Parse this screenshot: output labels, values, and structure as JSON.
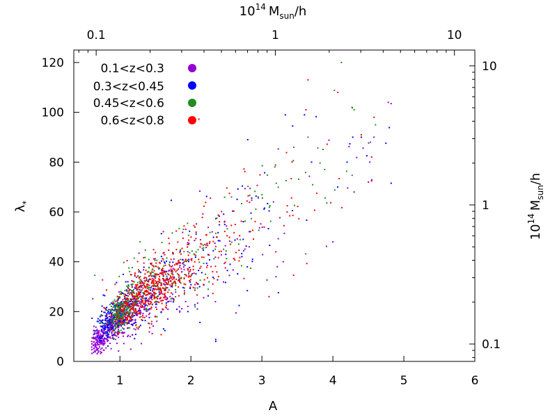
{
  "chart_data": {
    "type": "scatter",
    "title": "",
    "xlabel": "A",
    "ylabel": "λ",
    "ylabel_sub": "*",
    "xlim": [
      0.35,
      6
    ],
    "ylim": [
      0,
      125
    ],
    "x_ticks": [
      "1",
      "2",
      "3",
      "4",
      "5",
      "6"
    ],
    "y_ticks": [
      "0",
      "20",
      "40",
      "60",
      "80",
      "100",
      "120"
    ],
    "top_axis": {
      "label_base": "10",
      "label_exp": "14",
      "label_unit": "M",
      "label_unit_sub": "sun",
      "label_suffix": "/h",
      "ticks": [
        "0.1",
        "1",
        "10"
      ],
      "tick_values": [
        0.1,
        1,
        10
      ],
      "scale": "log",
      "range": [
        0.075,
        13
      ]
    },
    "right_axis": {
      "label_base": "10",
      "label_exp": "14",
      "label_unit": "M",
      "label_unit_sub": "sun",
      "label_suffix": "/h",
      "ticks": [
        "0.1",
        "1",
        "10"
      ],
      "tick_values": [
        0.1,
        1,
        10
      ],
      "scale": "log",
      "range": [
        0.075,
        13
      ]
    },
    "legend_position": "top-left",
    "series": [
      {
        "name": "0.1<z<0.3",
        "color": "#9400d3",
        "clusters": [
          [
            0.7,
            8,
            0.06,
            2.5,
            120
          ],
          [
            0.85,
            13,
            0.12,
            3.5,
            130
          ],
          [
            1.05,
            17,
            0.18,
            4.5,
            110
          ],
          [
            1.4,
            24,
            0.3,
            6.5,
            90
          ],
          [
            1.9,
            34,
            0.45,
            9,
            60
          ],
          [
            2.6,
            48,
            0.55,
            12,
            30
          ],
          [
            3.6,
            68,
            0.7,
            15,
            10
          ]
        ],
        "extras": [
          [
            4.78,
            104
          ],
          [
            4.82,
            103.5
          ],
          [
            4.58,
            90
          ],
          [
            4.52,
            80
          ],
          [
            4.5,
            72
          ],
          [
            4.0,
            48
          ],
          [
            3.2,
            34
          ],
          [
            3.3,
            40
          ],
          [
            2.3,
            52
          ],
          [
            4.3,
            68
          ]
        ]
      },
      {
        "name": "0.3<z<0.45",
        "color": "#0000ff",
        "clusters": [
          [
            0.85,
            15,
            0.1,
            3,
            120
          ],
          [
            1.0,
            19,
            0.15,
            3.5,
            130
          ],
          [
            1.35,
            26,
            0.28,
            6,
            110
          ],
          [
            1.9,
            36,
            0.45,
            9,
            70
          ],
          [
            2.6,
            50,
            0.55,
            12,
            35
          ],
          [
            3.6,
            72,
            0.7,
            15,
            12
          ]
        ],
        "extras": [
          [
            3.33,
            99
          ],
          [
            3.6,
            99
          ],
          [
            4.28,
            90
          ],
          [
            4.4,
            90
          ],
          [
            4.2,
            80
          ],
          [
            2.35,
            8
          ],
          [
            2.8,
            89
          ],
          [
            3.7,
            80
          ]
        ]
      },
      {
        "name": "0.45<z<0.6",
        "color": "#228b22",
        "clusters": [
          [
            1.0,
            19,
            0.07,
            3,
            180
          ],
          [
            1.2,
            25,
            0.18,
            5,
            120
          ],
          [
            1.5,
            31,
            0.3,
            6,
            90
          ],
          [
            2.0,
            42,
            0.45,
            9,
            60
          ],
          [
            2.7,
            56,
            0.55,
            12,
            30
          ],
          [
            3.6,
            74,
            0.6,
            14,
            12
          ]
        ],
        "extras": [
          [
            4.12,
            120
          ],
          [
            4.27,
            102
          ],
          [
            4.3,
            101
          ],
          [
            3.65,
            90
          ],
          [
            4.53,
            88
          ],
          [
            3.45,
            86
          ],
          [
            4.6,
            95
          ]
        ]
      },
      {
        "name": "0.6<z<0.8",
        "color": "#ff0000",
        "clusters": [
          [
            1.1,
            20,
            0.12,
            3.5,
            90
          ],
          [
            1.35,
            27,
            0.22,
            5,
            170
          ],
          [
            1.6,
            33,
            0.25,
            5.5,
            160
          ],
          [
            1.95,
            40,
            0.35,
            8,
            100
          ],
          [
            2.5,
            50,
            0.5,
            11,
            55
          ],
          [
            3.3,
            64,
            0.6,
            14,
            20
          ]
        ],
        "extras": [
          [
            3.65,
            113
          ],
          [
            4.07,
            108
          ],
          [
            3.1,
            26
          ],
          [
            4.4,
            91
          ],
          [
            4.58,
            98
          ],
          [
            3.62,
            101
          ]
        ]
      }
    ]
  }
}
